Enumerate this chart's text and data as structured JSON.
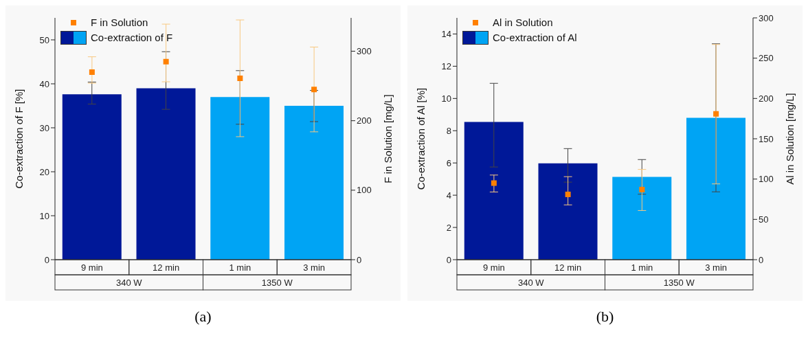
{
  "chart_data": [
    {
      "type": "bar",
      "title": "(a)",
      "categories": [
        "9 min",
        "12 min",
        "1 min",
        "3 min"
      ],
      "annotations": [
        "340 W",
        "1350 W"
      ],
      "ylabel": "Co-extraction of F [%]",
      "y2label": "F in Solution [mg/L]",
      "ylim": [
        0,
        55
      ],
      "yticks": [
        0,
        10,
        20,
        30,
        40,
        50
      ],
      "y2lim": [
        0,
        348
      ],
      "y2ticks": [
        0,
        100,
        200,
        300
      ],
      "legend": "top left",
      "marker": "square",
      "series": [
        {
          "name": "F in Solution",
          "type": "scatter",
          "axis": "y2",
          "color": "#ff8000",
          "values": [
            270,
            285,
            261,
            245
          ],
          "errors": [
            [
              254,
              292
            ],
            [
              256,
              339
            ],
            [
              177,
              345
            ],
            [
              184,
              306
            ]
          ]
        },
        {
          "name": "Co-extraction of F",
          "colors": [
            "#001898",
            "#001898",
            "#00a4f4",
            "#00a4f4"
          ],
          "values": [
            37.6,
            39.0,
            37.0,
            35.0
          ],
          "errors": [
            [
              35.4,
              40.4
            ],
            [
              34.2,
              47.3
            ],
            [
              30.8,
              43.0
            ],
            [
              31.4,
              38.5
            ]
          ]
        }
      ]
    },
    {
      "type": "bar",
      "title": "(b)",
      "categories": [
        "9 min",
        "12 min",
        "1 min",
        "3 min"
      ],
      "annotations": [
        "340 W",
        "1350 W"
      ],
      "ylabel": "Co-extraction of Al [%]",
      "y2label": "Al in Solution [mg/L]",
      "ylim": [
        0,
        15
      ],
      "yticks": [
        0,
        2,
        4,
        6,
        8,
        10,
        12,
        14
      ],
      "y2lim": [
        0,
        300
      ],
      "y2ticks": [
        0,
        50,
        100,
        150,
        200,
        250,
        300
      ],
      "legend": "top left",
      "marker": "square",
      "series": [
        {
          "name": "Al in Solution",
          "type": "scatter",
          "axis": "y2",
          "color": "#ff8000",
          "values": [
            95,
            81,
            87,
            181
          ],
          "errors": [
            [
              84,
              105
            ],
            [
              68,
              103
            ],
            [
              61,
              112
            ],
            [
              94,
              267
            ]
          ]
        },
        {
          "name": "Co-extraction of Al",
          "colors": [
            "#001898",
            "#001898",
            "#00a4f4",
            "#00a4f4"
          ],
          "values": [
            8.54,
            5.98,
            5.14,
            8.8
          ],
          "errors": [
            [
              5.75,
              10.94
            ],
            [
              4.81,
              6.89
            ],
            [
              4.06,
              6.21
            ],
            [
              4.21,
              13.39
            ]
          ]
        }
      ]
    }
  ]
}
